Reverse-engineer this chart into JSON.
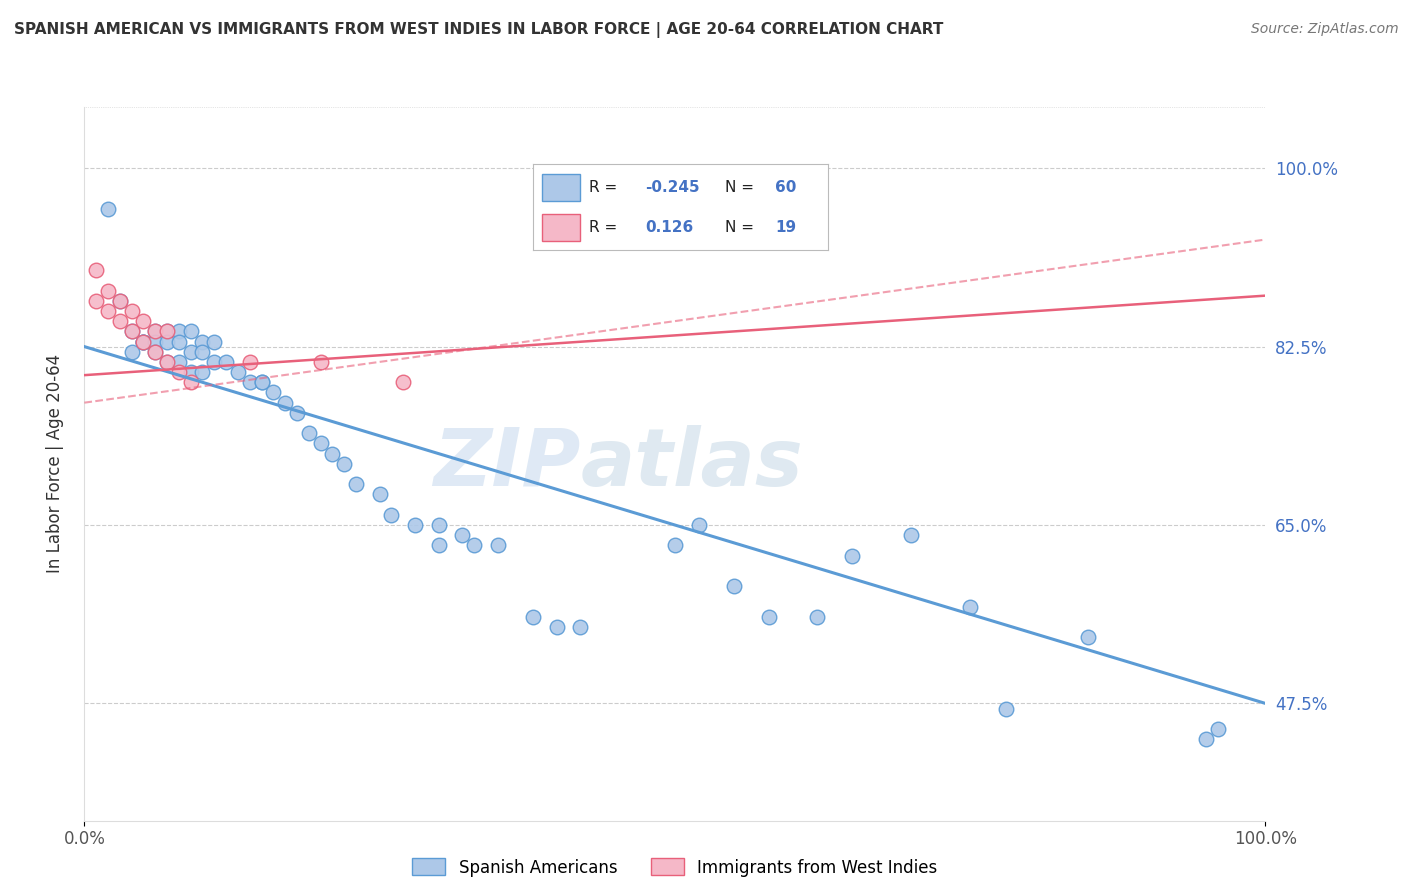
{
  "title": "SPANISH AMERICAN VS IMMIGRANTS FROM WEST INDIES IN LABOR FORCE | AGE 20-64 CORRELATION CHART",
  "source": "Source: ZipAtlas.com",
  "ylabel": "In Labor Force | Age 20-64",
  "y_tick_labels": [
    "47.5%",
    "65.0%",
    "82.5%",
    "100.0%"
  ],
  "y_tick_positions": [
    0.475,
    0.65,
    0.825,
    1.0
  ],
  "xlim": [
    0.0,
    1.0
  ],
  "ylim": [
    0.36,
    1.06
  ],
  "blue_R": -0.245,
  "blue_N": 60,
  "pink_R": 0.126,
  "pink_N": 19,
  "blue_color": "#adc8e8",
  "pink_color": "#f5b8c8",
  "blue_line_color": "#5b9bd5",
  "pink_line_color": "#e8607a",
  "watermark_part1": "ZIP",
  "watermark_part2": "atlas",
  "blue_trend_y_start": 0.825,
  "blue_trend_y_end": 0.475,
  "pink_trend_y_start": 0.797,
  "pink_trend_y_end": 0.875,
  "pink_dash_trend_y_start": 0.77,
  "pink_dash_trend_y_end": 0.93,
  "grid_color": "#cccccc",
  "background_color": "#ffffff",
  "blue_scatter_x": [
    0.02,
    0.03,
    0.04,
    0.04,
    0.05,
    0.05,
    0.05,
    0.06,
    0.06,
    0.06,
    0.07,
    0.07,
    0.07,
    0.08,
    0.08,
    0.08,
    0.09,
    0.09,
    0.09,
    0.1,
    0.1,
    0.1,
    0.11,
    0.11,
    0.12,
    0.13,
    0.14,
    0.15,
    0.15,
    0.16,
    0.17,
    0.18,
    0.19,
    0.2,
    0.21,
    0.22,
    0.23,
    0.25,
    0.26,
    0.28,
    0.3,
    0.3,
    0.32,
    0.33,
    0.35,
    0.38,
    0.4,
    0.42,
    0.5,
    0.52,
    0.55,
    0.58,
    0.62,
    0.65,
    0.7,
    0.75,
    0.78,
    0.85,
    0.95,
    0.96
  ],
  "blue_scatter_y": [
    0.96,
    0.87,
    0.84,
    0.82,
    0.83,
    0.83,
    0.83,
    0.84,
    0.83,
    0.82,
    0.84,
    0.83,
    0.81,
    0.84,
    0.83,
    0.81,
    0.84,
    0.82,
    0.8,
    0.83,
    0.82,
    0.8,
    0.83,
    0.81,
    0.81,
    0.8,
    0.79,
    0.79,
    0.79,
    0.78,
    0.77,
    0.76,
    0.74,
    0.73,
    0.72,
    0.71,
    0.69,
    0.68,
    0.66,
    0.65,
    0.65,
    0.63,
    0.64,
    0.63,
    0.63,
    0.56,
    0.55,
    0.55,
    0.63,
    0.65,
    0.59,
    0.56,
    0.56,
    0.62,
    0.64,
    0.57,
    0.47,
    0.54,
    0.44,
    0.45
  ],
  "pink_scatter_x": [
    0.01,
    0.01,
    0.02,
    0.02,
    0.03,
    0.03,
    0.04,
    0.04,
    0.05,
    0.05,
    0.06,
    0.06,
    0.07,
    0.07,
    0.08,
    0.09,
    0.14,
    0.2,
    0.27
  ],
  "pink_scatter_y": [
    0.9,
    0.87,
    0.88,
    0.86,
    0.87,
    0.85,
    0.86,
    0.84,
    0.85,
    0.83,
    0.84,
    0.82,
    0.84,
    0.81,
    0.8,
    0.79,
    0.81,
    0.81,
    0.79
  ]
}
